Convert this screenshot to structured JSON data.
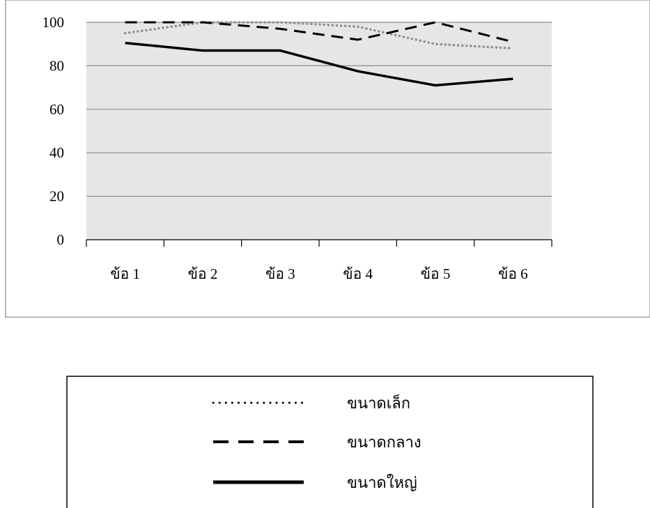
{
  "chart_data": {
    "type": "line",
    "title": "",
    "xlabel": "",
    "ylabel": "",
    "categories": [
      "ข้อ 1",
      "ข้อ 2",
      "ข้อ 3",
      "ข้อ 4",
      "ข้อ 5",
      "ข้อ 6"
    ],
    "ylim": [
      0,
      100
    ],
    "yticks": [
      "0",
      "20",
      "40",
      "60",
      "80",
      "100"
    ],
    "grid": true,
    "legend_position": "bottom",
    "series": [
      {
        "name": "ขนาดเล็ก",
        "values": [
          95,
          100,
          100,
          98,
          90,
          88
        ],
        "style": "dotted",
        "color": "#909090"
      },
      {
        "name": "ขนาดกลาง",
        "values": [
          100,
          100,
          97,
          92,
          100,
          91
        ],
        "style": "dashed",
        "color": "#000000"
      },
      {
        "name": "ขนาดใหญ่",
        "values": [
          90.5,
          87,
          87,
          77.5,
          71,
          74
        ],
        "style": "solid",
        "color": "#000000"
      }
    ]
  },
  "colors": {
    "plot_background": "#e6e6e6",
    "gridline": "#8c8c8c",
    "frame": "#a0a0a0"
  }
}
